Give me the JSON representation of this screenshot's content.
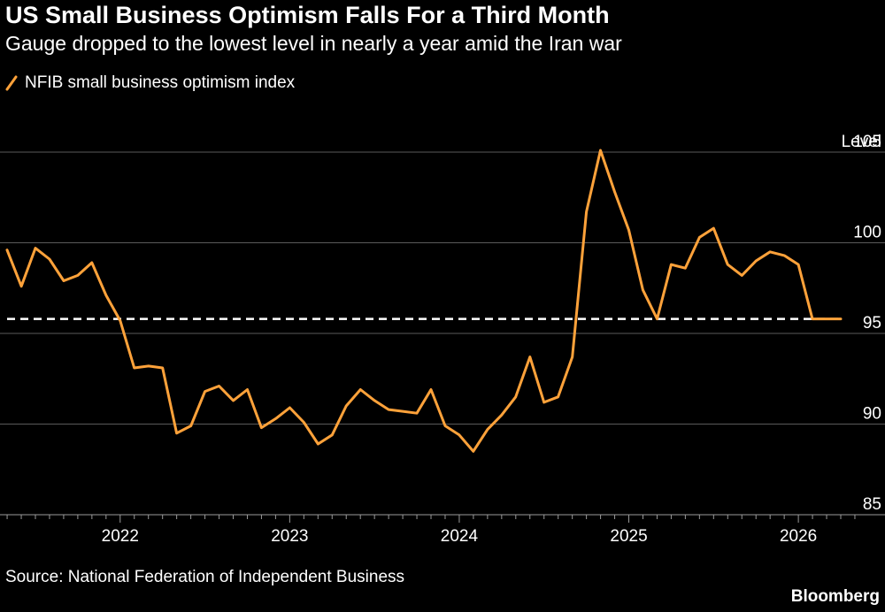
{
  "colors": {
    "background": "#000000",
    "line": "#FFA23A",
    "grid": "#5a5a5a",
    "text": "#ffffff",
    "reference_line": "#ffffff"
  },
  "chart_data": {
    "type": "line",
    "title": "US Small Business Optimism Falls For a Third Month",
    "subtitle": "Gauge dropped to the lowest level in nearly a year amid the Iran war",
    "ylabel": "Level",
    "xlabel": "",
    "ylim": [
      85,
      106
    ],
    "yticks": [
      105,
      100,
      95,
      90,
      85
    ],
    "xlim": [
      2021.333,
      2026.333
    ],
    "xticks": [
      {
        "value": 2022,
        "label": "2022"
      },
      {
        "value": 2023,
        "label": "2023"
      },
      {
        "value": 2024,
        "label": "2024"
      },
      {
        "value": 2025,
        "label": "2025"
      },
      {
        "value": 2026,
        "label": "2026"
      }
    ],
    "grid": true,
    "legend_position": "top-left",
    "reference_line": {
      "value": 95.8,
      "style": "dashed",
      "label": ""
    },
    "series": [
      {
        "name": "NFIB small business optimism index",
        "x": [
          2021.333,
          2021.417,
          2021.5,
          2021.583,
          2021.667,
          2021.75,
          2021.833,
          2021.917,
          2022.0,
          2022.083,
          2022.167,
          2022.25,
          2022.333,
          2022.417,
          2022.5,
          2022.583,
          2022.667,
          2022.75,
          2022.833,
          2022.917,
          2023.0,
          2023.083,
          2023.167,
          2023.25,
          2023.333,
          2023.417,
          2023.5,
          2023.583,
          2023.667,
          2023.75,
          2023.833,
          2023.917,
          2024.0,
          2024.083,
          2024.167,
          2024.25,
          2024.333,
          2024.417,
          2024.5,
          2024.583,
          2024.667,
          2024.75,
          2024.833,
          2024.917,
          2025.0,
          2025.083,
          2025.167,
          2025.25,
          2025.333,
          2025.417,
          2025.5,
          2025.583,
          2025.667,
          2025.75,
          2025.833,
          2025.917,
          2026.0,
          2026.083,
          2026.167,
          2026.25
        ],
        "values": [
          99.6,
          97.6,
          99.7,
          99.1,
          97.9,
          98.2,
          98.9,
          97.1,
          95.7,
          93.1,
          93.2,
          93.1,
          89.5,
          89.9,
          91.8,
          92.1,
          91.3,
          91.9,
          89.8,
          90.3,
          90.9,
          90.1,
          88.9,
          89.4,
          91.0,
          91.9,
          91.3,
          90.8,
          90.7,
          90.6,
          91.9,
          89.9,
          89.4,
          88.5,
          89.7,
          90.5,
          91.5,
          93.7,
          91.2,
          91.5,
          93.7,
          101.7,
          105.1,
          102.8,
          100.7,
          97.4,
          95.8,
          98.8,
          98.6,
          100.3,
          100.8,
          98.8,
          98.2,
          99.0,
          99.5,
          99.3,
          98.8,
          95.8,
          95.8,
          95.8
        ],
        "color": "#FFA23A"
      }
    ]
  },
  "legend": {
    "label": "NFIB small business optimism index"
  },
  "footer": {
    "source": "Source: National Federation of Independent Business",
    "brand": "Bloomberg"
  }
}
